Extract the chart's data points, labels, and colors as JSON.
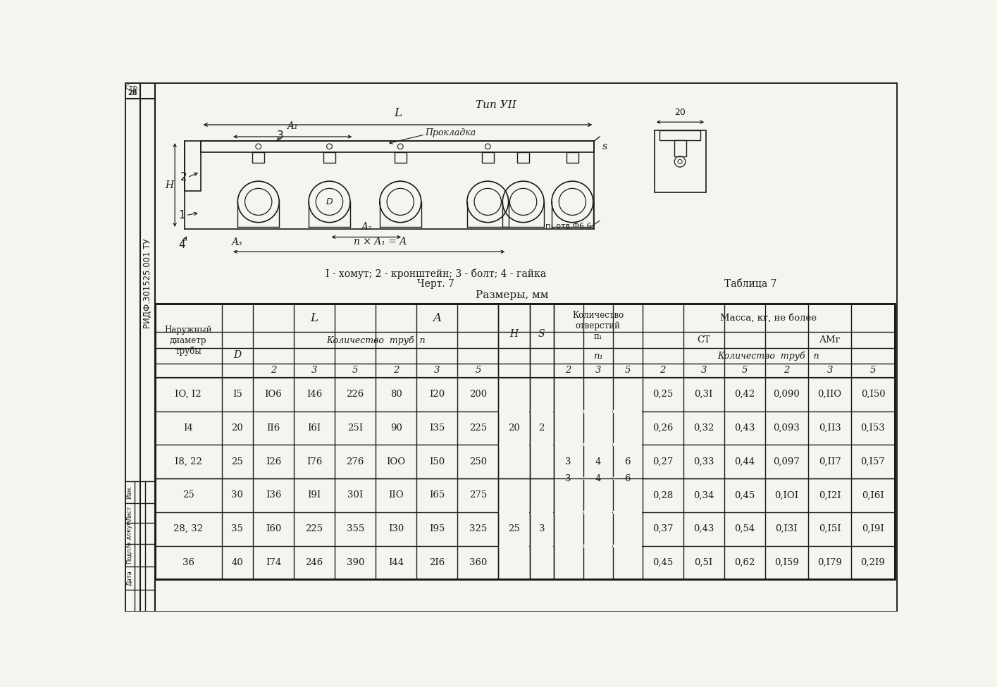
{
  "title_type": "Тип УII",
  "label1": "I - хомут; 2 - кронштейн; 3 - болт; 4 - гайка",
  "label2": "Черт. 7",
  "label3": "Таблица 7",
  "label4": "Размеры, мм",
  "side_text": "РИДФ.301525.001 ТУ",
  "page_num": "28",
  "page_label": "Стр.",
  "table_data": [
    [
      "IO, I2",
      "I5",
      "IO6",
      "I46",
      "226",
      "80",
      "I20",
      "200",
      "",
      "",
      "",
      "",
      "",
      "0,25",
      "0,3I",
      "0,42",
      "0,090",
      "0,IIO",
      "0,I50"
    ],
    [
      "I4",
      "20",
      "II6",
      "I6I",
      "25I",
      "90",
      "I35",
      "225",
      "",
      "",
      "",
      "",
      "",
      "0,26",
      "0,32",
      "0,43",
      "0,093",
      "0,II3",
      "0,I53"
    ],
    [
      "I8, 22",
      "25",
      "I26",
      "I76",
      "276",
      "IOO",
      "I50",
      "250",
      "",
      "",
      "3",
      "4",
      "6",
      "0,27",
      "0,33",
      "0,44",
      "0,097",
      "0,II7",
      "0,I57"
    ],
    [
      "25",
      "30",
      "I36",
      "I9I",
      "30I",
      "IIO",
      "I65",
      "275",
      "",
      "",
      "",
      "",
      "",
      "0,28",
      "0,34",
      "0,45",
      "0,IOI",
      "0,I2I",
      "0,I6I"
    ],
    [
      "28, 32",
      "35",
      "I60",
      "225",
      "355",
      "I30",
      "I95",
      "325",
      "",
      "",
      "",
      "",
      "",
      "0,37",
      "0,43",
      "0,54",
      "0,I3I",
      "0,I5I",
      "0,I9I"
    ],
    [
      "36",
      "40",
      "I74",
      "246",
      "390",
      "I44",
      "2I6",
      "360",
      "",
      "",
      "",
      "",
      "",
      "0,45",
      "0,5I",
      "0,62",
      "0,I59",
      "0,I79",
      "0,2I9"
    ]
  ],
  "H_vals": [
    "20",
    "25"
  ],
  "S_vals": [
    "2",
    "3"
  ],
  "n1_vals": [
    "3",
    "4",
    "6"
  ],
  "bg_color": "#f5f5f0",
  "line_color": "#1a1a1a",
  "text_color": "#1a1a1a"
}
